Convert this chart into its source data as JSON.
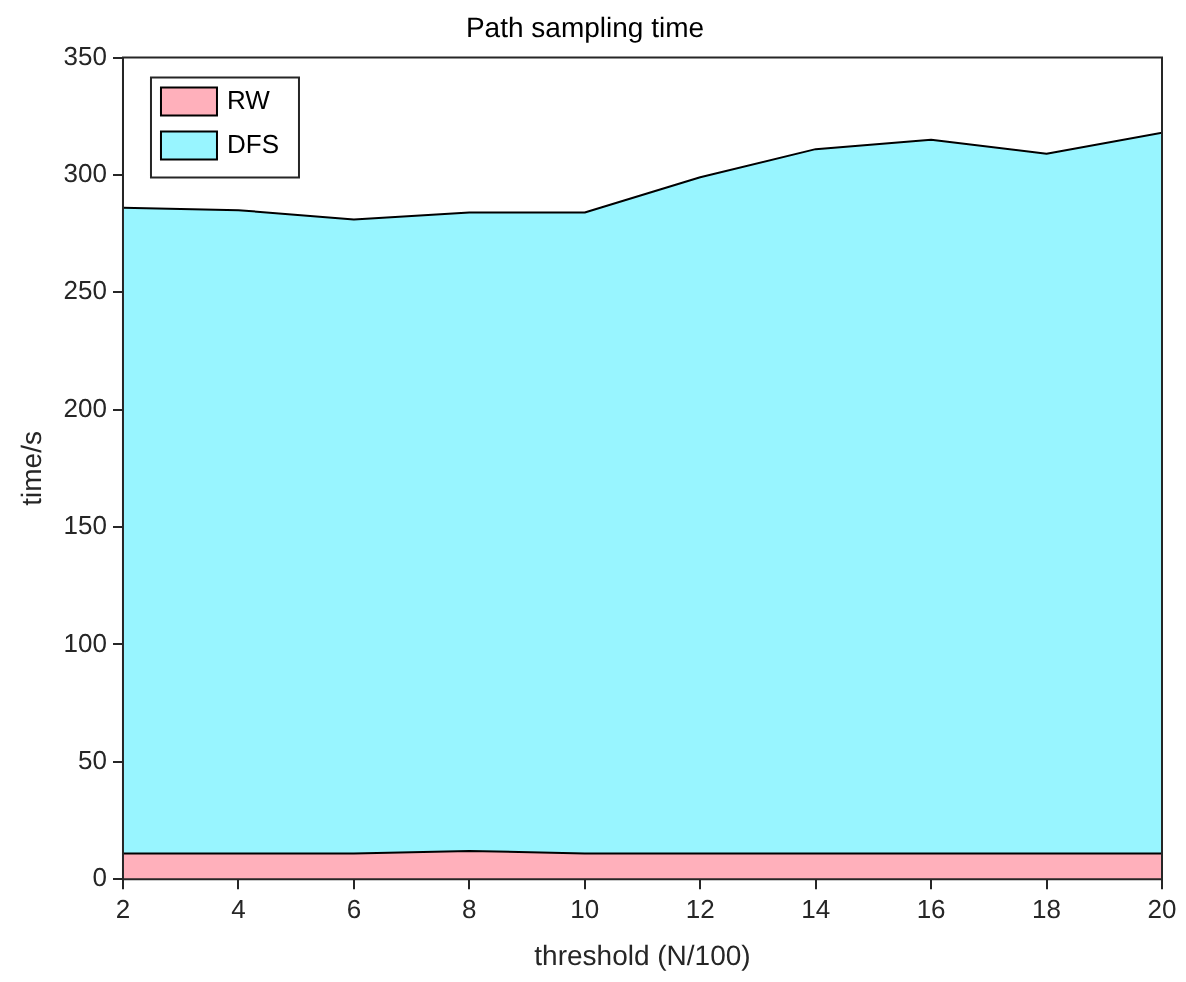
{
  "chart_data": {
    "type": "area",
    "title": "Path sampling time",
    "xlabel": "threshold (N/100)",
    "ylabel": "time/s",
    "x": [
      2,
      4,
      6,
      8,
      10,
      12,
      14,
      16,
      18,
      20
    ],
    "stacked": true,
    "series": [
      {
        "name": "RW",
        "color": "#ffb0bb",
        "values": [
          11,
          11,
          11,
          12,
          11,
          11,
          11,
          11,
          11,
          11
        ]
      },
      {
        "name": "DFS",
        "color": "#98f5ff",
        "values": [
          275,
          274,
          270,
          272,
          273,
          288,
          300,
          304,
          298,
          307
        ]
      }
    ],
    "xlim": [
      2,
      20
    ],
    "xticks": [
      2,
      4,
      6,
      8,
      10,
      12,
      14,
      16,
      18,
      20
    ],
    "ylim": [
      0,
      350
    ],
    "yticks": [
      0,
      50,
      100,
      150,
      200,
      250,
      300,
      350
    ],
    "grid": false,
    "legend": "top left"
  }
}
